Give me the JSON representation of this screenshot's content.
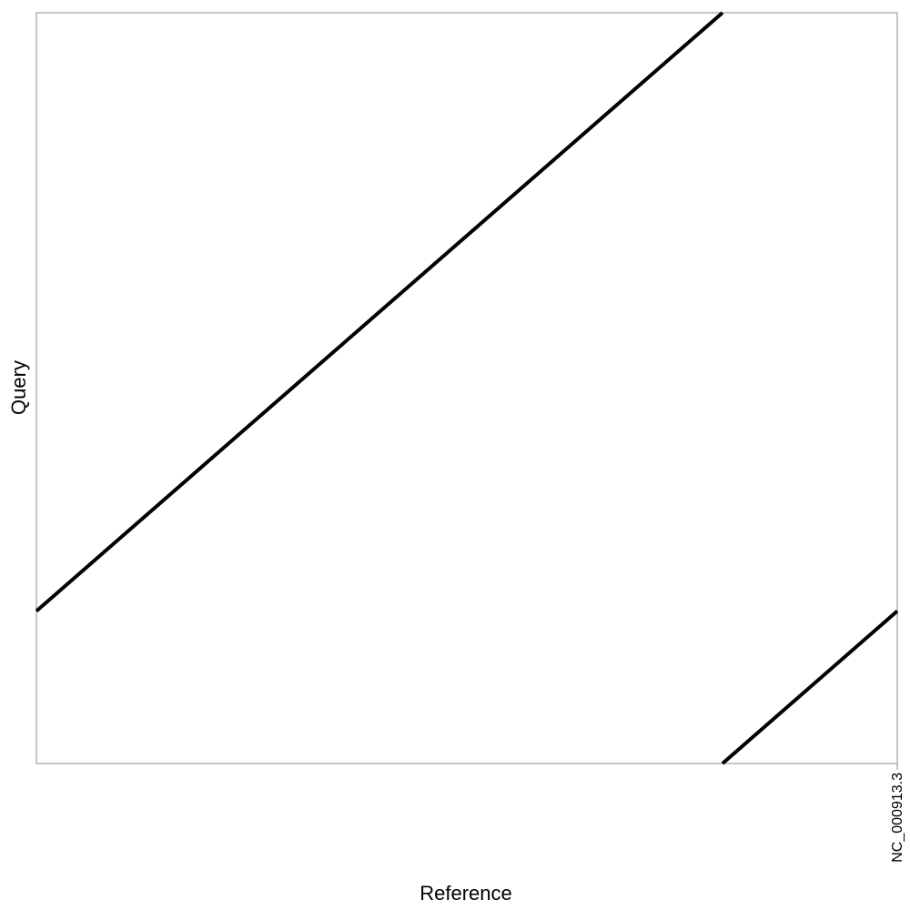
{
  "chart_data": {
    "type": "line",
    "xlabel": "Reference",
    "ylabel": "Query",
    "x_ticks": [
      {
        "label": "NC_000913.3",
        "value": 1.0
      }
    ],
    "xlim": [
      0,
      1.0
    ],
    "ylim": [
      0,
      1.0
    ],
    "grid": false,
    "series": [
      {
        "color": "#000000",
        "segments": [
          {
            "x": [
              0.0,
              0.425
            ],
            "y": [
              0.203,
              0.628
            ]
          },
          {
            "x": [
              0.425,
              0.797
            ],
            "y": [
              0.628,
              1.0
            ]
          },
          {
            "x": [
              0.797,
              1.0
            ],
            "y": [
              0.0,
              0.203
            ]
          }
        ]
      }
    ]
  }
}
